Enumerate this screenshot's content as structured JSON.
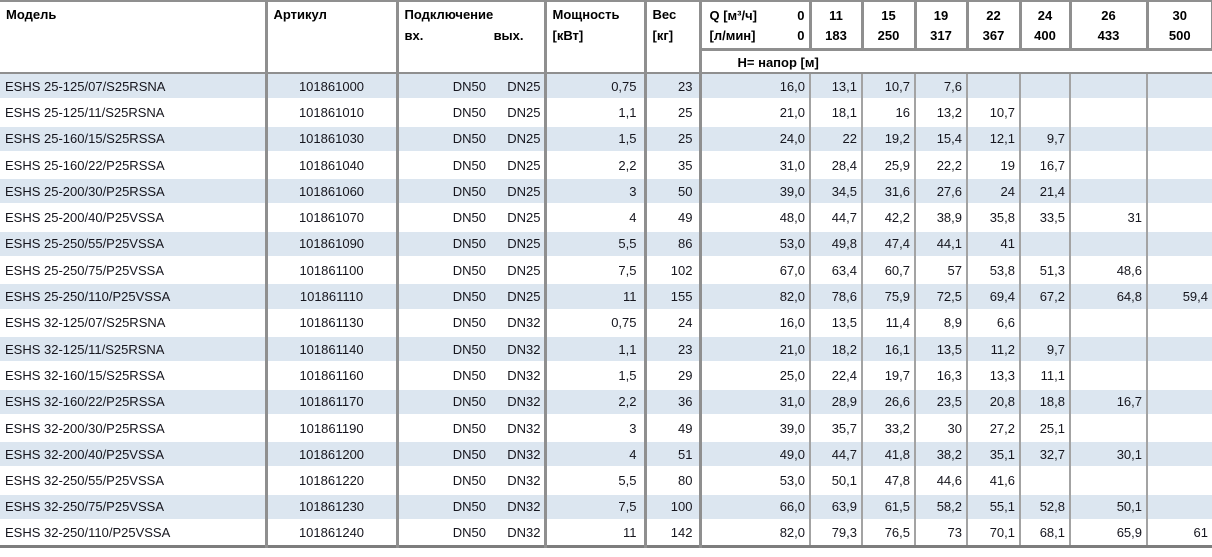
{
  "header": {
    "model": "Модель",
    "article": "Артикул",
    "connection": "Подключение",
    "inlet": "вх.",
    "outlet": "вых.",
    "power_line1": "Мощность",
    "power_line2": "[кВт]",
    "weight_line1": "Вес",
    "weight_line2": "[кг]",
    "q_label_m3h": "Q [м³/ч]",
    "q_zero_m3h": "0",
    "q_label_lmin": "[л/мин]",
    "q_zero_lmin": "0",
    "head_row_label": "H= напор [м]",
    "q_columns": [
      {
        "m3h": "11",
        "lmin": "183"
      },
      {
        "m3h": "15",
        "lmin": "250"
      },
      {
        "m3h": "19",
        "lmin": "317"
      },
      {
        "m3h": "22",
        "lmin": "367"
      },
      {
        "m3h": "24",
        "lmin": "400"
      },
      {
        "m3h": "26",
        "lmin": "433"
      },
      {
        "m3h": "30",
        "lmin": "500"
      }
    ]
  },
  "colors": {
    "stripe_blue": "#dce6f0",
    "grid_major": "#8f8f8f",
    "grid_minor": "#a3a3a3",
    "text": "#16161e"
  },
  "rows": [
    {
      "model": "ESHS 25-125/07/S25RSNA",
      "article": "101861000",
      "inlet": "DN50",
      "outlet": "DN25",
      "power": "0,75",
      "weight": "23",
      "head": [
        "16,0",
        "13,1",
        "10,7",
        "7,6",
        "",
        "",
        "",
        ""
      ]
    },
    {
      "model": "ESHS 25-125/11/S25RSNA",
      "article": "101861010",
      "inlet": "DN50",
      "outlet": "DN25",
      "power": "1,1",
      "weight": "25",
      "head": [
        "21,0",
        "18,1",
        "16",
        "13,2",
        "10,7",
        "",
        "",
        ""
      ]
    },
    {
      "model": "ESHS 25-160/15/S25RSSA",
      "article": "101861030",
      "inlet": "DN50",
      "outlet": "DN25",
      "power": "1,5",
      "weight": "25",
      "head": [
        "24,0",
        "22",
        "19,2",
        "15,4",
        "12,1",
        "9,7",
        "",
        ""
      ]
    },
    {
      "model": "ESHS 25-160/22/P25RSSA",
      "article": "101861040",
      "inlet": "DN50",
      "outlet": "DN25",
      "power": "2,2",
      "weight": "35",
      "head": [
        "31,0",
        "28,4",
        "25,9",
        "22,2",
        "19",
        "16,7",
        "",
        ""
      ]
    },
    {
      "model": "ESHS 25-200/30/P25RSSA",
      "article": "101861060",
      "inlet": "DN50",
      "outlet": "DN25",
      "power": "3",
      "weight": "50",
      "head": [
        "39,0",
        "34,5",
        "31,6",
        "27,6",
        "24",
        "21,4",
        "",
        ""
      ]
    },
    {
      "model": "ESHS 25-200/40/P25VSSA",
      "article": "101861070",
      "inlet": "DN50",
      "outlet": "DN25",
      "power": "4",
      "weight": "49",
      "head": [
        "48,0",
        "44,7",
        "42,2",
        "38,9",
        "35,8",
        "33,5",
        "31",
        ""
      ]
    },
    {
      "model": "ESHS 25-250/55/P25VSSA",
      "article": "101861090",
      "inlet": "DN50",
      "outlet": "DN25",
      "power": "5,5",
      "weight": "86",
      "head": [
        "53,0",
        "49,8",
        "47,4",
        "44,1",
        "41",
        "",
        "",
        ""
      ]
    },
    {
      "model": "ESHS 25-250/75/P25VSSA",
      "article": "101861100",
      "inlet": "DN50",
      "outlet": "DN25",
      "power": "7,5",
      "weight": "102",
      "head": [
        "67,0",
        "63,4",
        "60,7",
        "57",
        "53,8",
        "51,3",
        "48,6",
        ""
      ]
    },
    {
      "model": "ESHS 25-250/110/P25VSSA",
      "article": "101861110",
      "inlet": "DN50",
      "outlet": "DN25",
      "power": "11",
      "weight": "155",
      "head": [
        "82,0",
        "78,6",
        "75,9",
        "72,5",
        "69,4",
        "67,2",
        "64,8",
        "59,4"
      ]
    },
    {
      "model": "ESHS 32-125/07/S25RSNA",
      "article": "101861130",
      "inlet": "DN50",
      "outlet": "DN32",
      "power": "0,75",
      "weight": "24",
      "head": [
        "16,0",
        "13,5",
        "11,4",
        "8,9",
        "6,6",
        "",
        "",
        ""
      ]
    },
    {
      "model": "ESHS 32-125/11/S25RSNA",
      "article": "101861140",
      "inlet": "DN50",
      "outlet": "DN32",
      "power": "1,1",
      "weight": "23",
      "head": [
        "21,0",
        "18,2",
        "16,1",
        "13,5",
        "11,2",
        "9,7",
        "",
        ""
      ]
    },
    {
      "model": "ESHS 32-160/15/S25RSSA",
      "article": "101861160",
      "inlet": "DN50",
      "outlet": "DN32",
      "power": "1,5",
      "weight": "29",
      "head": [
        "25,0",
        "22,4",
        "19,7",
        "16,3",
        "13,3",
        "11,1",
        "",
        ""
      ]
    },
    {
      "model": "ESHS 32-160/22/P25RSSA",
      "article": "101861170",
      "inlet": "DN50",
      "outlet": "DN32",
      "power": "2,2",
      "weight": "36",
      "head": [
        "31,0",
        "28,9",
        "26,6",
        "23,5",
        "20,8",
        "18,8",
        "16,7",
        ""
      ]
    },
    {
      "model": "ESHS 32-200/30/P25RSSA",
      "article": "101861190",
      "inlet": "DN50",
      "outlet": "DN32",
      "power": "3",
      "weight": "49",
      "head": [
        "39,0",
        "35,7",
        "33,2",
        "30",
        "27,2",
        "25,1",
        "",
        ""
      ]
    },
    {
      "model": "ESHS 32-200/40/P25VSSA",
      "article": "101861200",
      "inlet": "DN50",
      "outlet": "DN32",
      "power": "4",
      "weight": "51",
      "head": [
        "49,0",
        "44,7",
        "41,8",
        "38,2",
        "35,1",
        "32,7",
        "30,1",
        ""
      ]
    },
    {
      "model": "ESHS 32-250/55/P25VSSA",
      "article": "101861220",
      "inlet": "DN50",
      "outlet": "DN32",
      "power": "5,5",
      "weight": "80",
      "head": [
        "53,0",
        "50,1",
        "47,8",
        "44,6",
        "41,6",
        "",
        "",
        ""
      ]
    },
    {
      "model": "ESHS 32-250/75/P25VSSA",
      "article": "101861230",
      "inlet": "DN50",
      "outlet": "DN32",
      "power": "7,5",
      "weight": "100",
      "head": [
        "66,0",
        "63,9",
        "61,5",
        "58,2",
        "55,1",
        "52,8",
        "50,1",
        ""
      ]
    },
    {
      "model": "ESHS 32-250/110/P25VSSA",
      "article": "101861240",
      "inlet": "DN50",
      "outlet": "DN32",
      "power": "11",
      "weight": "142",
      "head": [
        "82,0",
        "79,3",
        "76,5",
        "73",
        "70,1",
        "68,1",
        "65,9",
        "61"
      ]
    }
  ]
}
